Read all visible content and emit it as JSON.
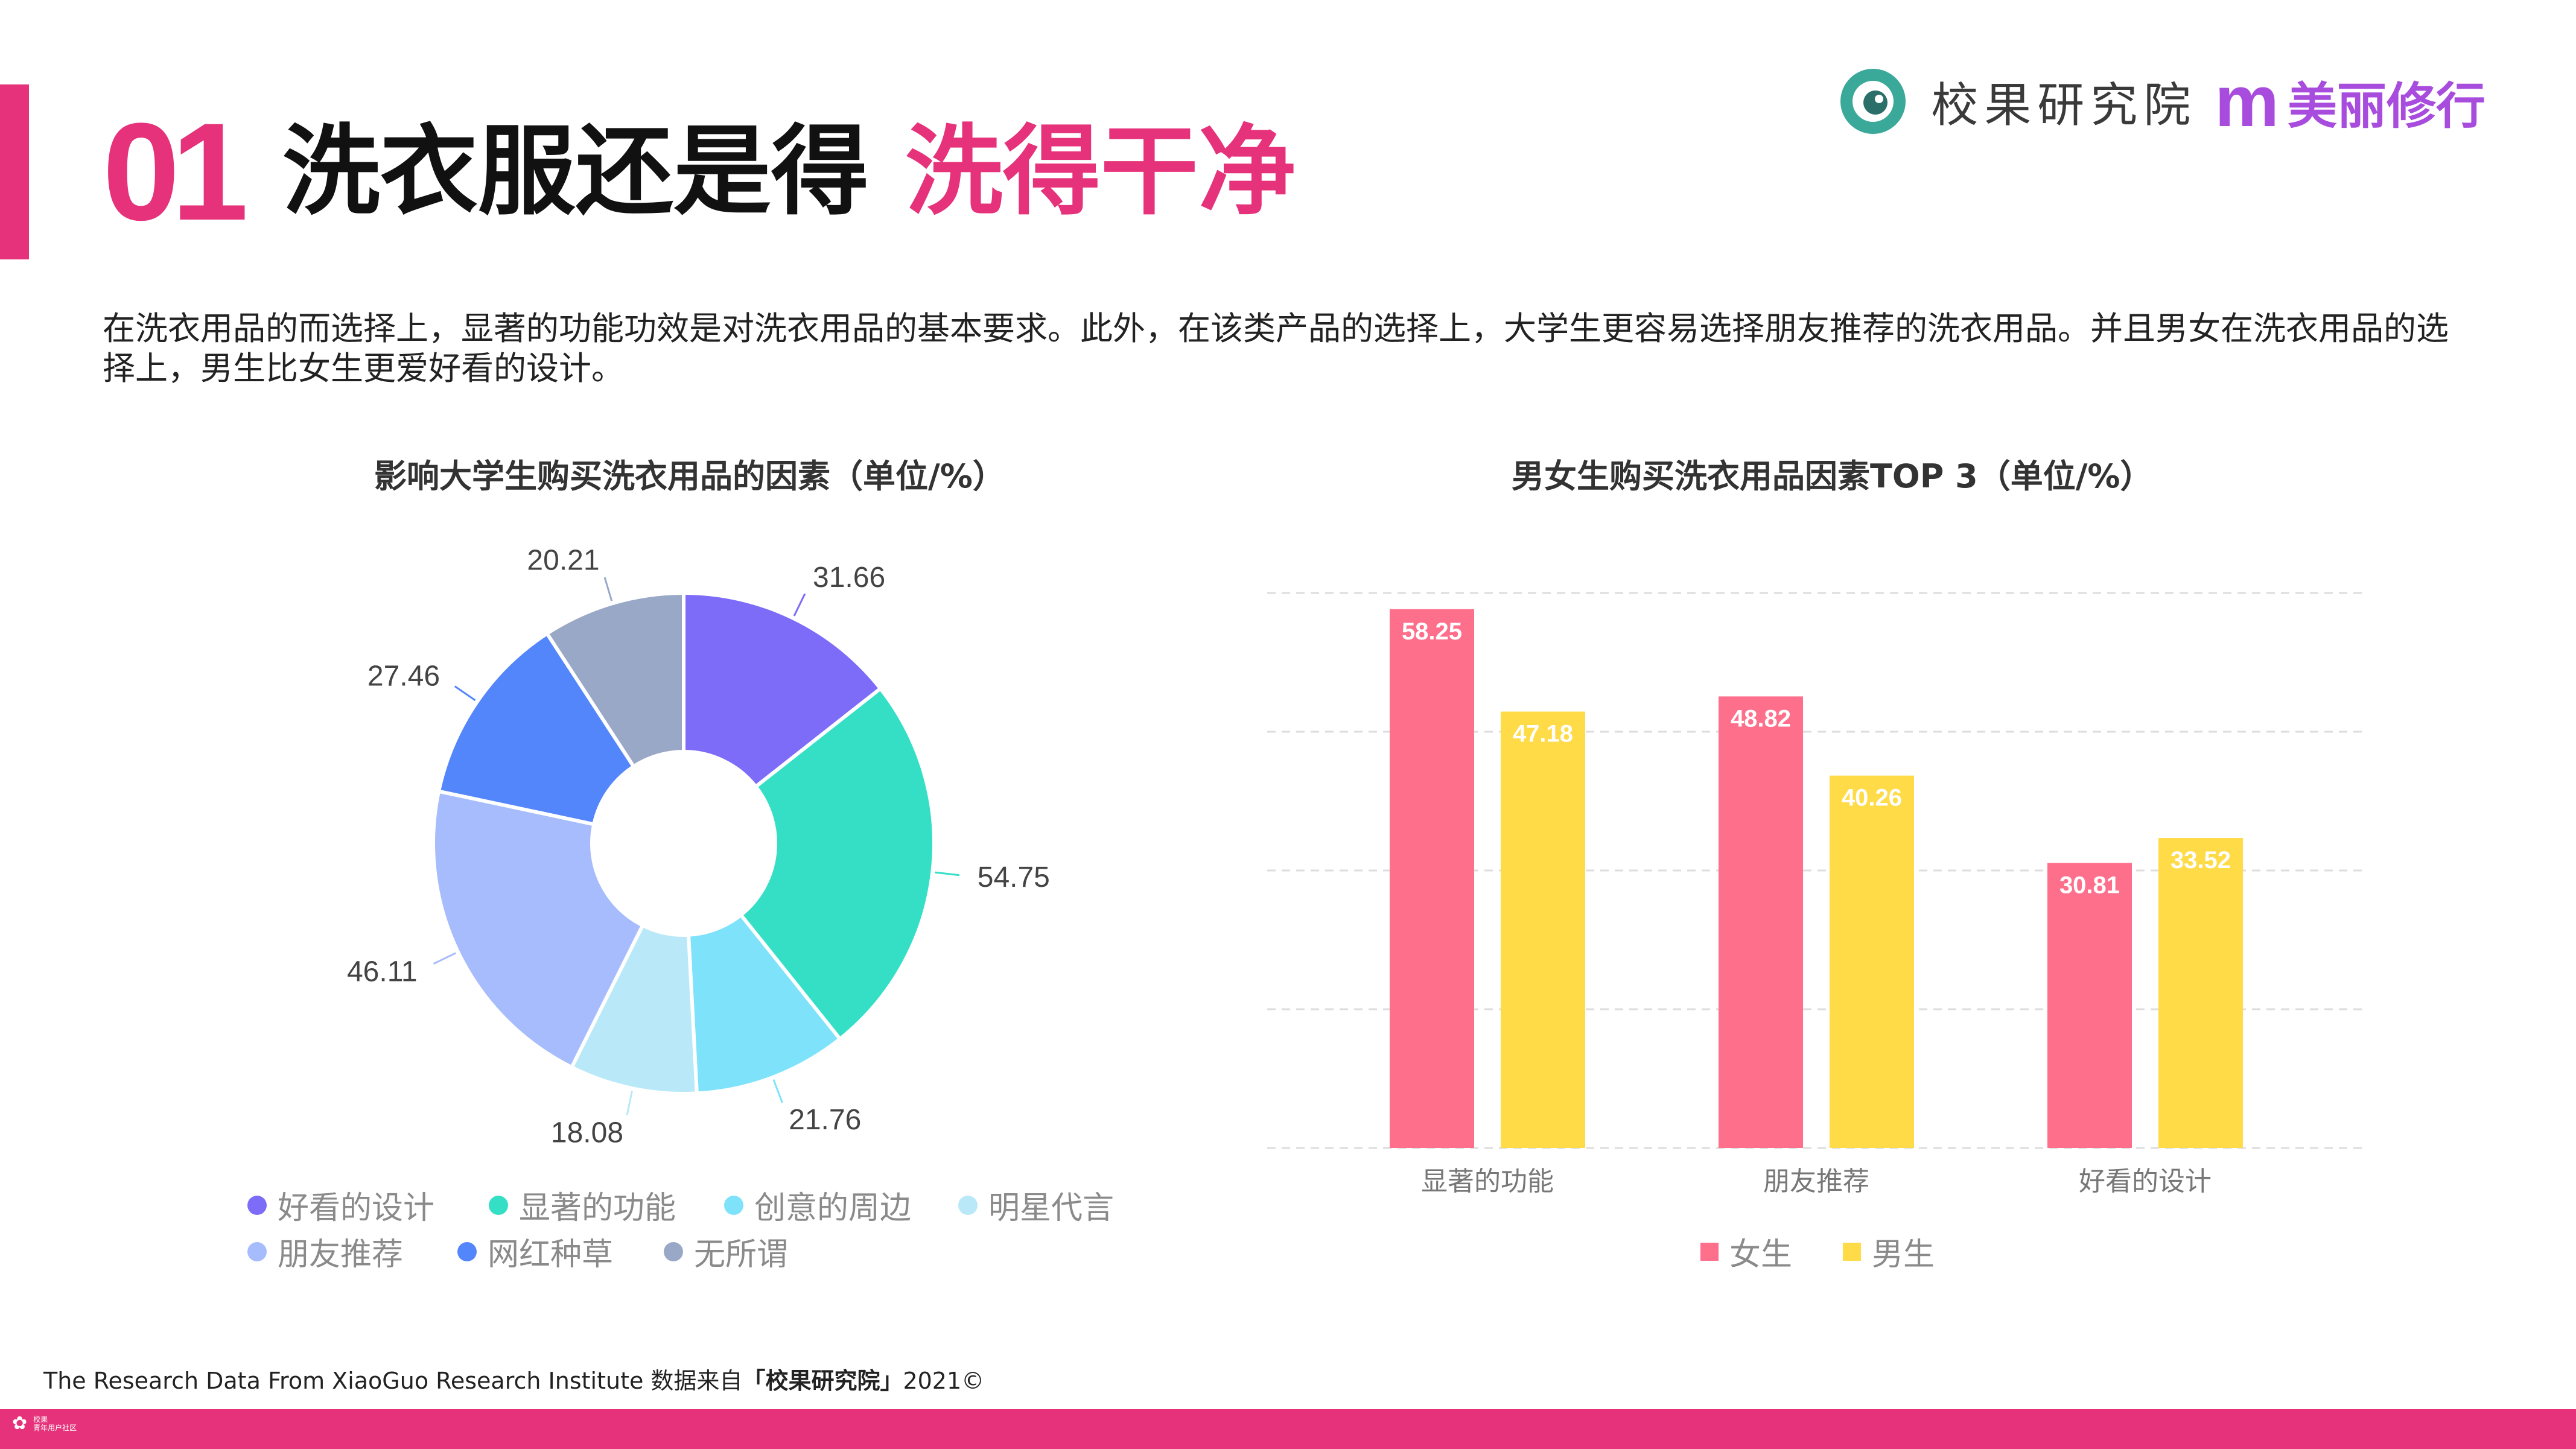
{
  "header": {
    "number": "01",
    "title_black": "洗衣服还是得",
    "title_pink": "洗得干净"
  },
  "brand": {
    "name": "校果研究院",
    "m_letter": "m",
    "sub_name": "美丽修行",
    "logo_color": "#3aa99a",
    "accent_color": "#a84cde"
  },
  "intro": "在洗衣用品的而选择上，显著的功能功效是对洗衣用品的基本要求。此外，在该类产品的选择上，大学生更容易选择朋友推荐的洗衣用品。并且男女在洗衣用品的选择上，男生比女生更爱好看的设计。",
  "chart_data": [
    {
      "type": "pie",
      "donut": true,
      "title": "影响大学生购买洗衣用品的因素（单位/%）",
      "categories": [
        "好看的设计",
        "显著的功能",
        "创意的周边",
        "明星代言",
        "朋友推荐",
        "网红种草",
        "无所谓"
      ],
      "values": [
        31.66,
        54.75,
        21.76,
        18.08,
        46.11,
        27.46,
        20.21
      ],
      "colors": [
        "#7c6cf8",
        "#34dfc6",
        "#7ee3fa",
        "#b9e9f8",
        "#a7bcfd",
        "#5486fb",
        "#9aa8c8"
      ],
      "legend_position": "bottom"
    },
    {
      "type": "bar",
      "title": "男女生购买洗衣用品因素TOP 3（单位/%）",
      "categories": [
        "显著的功能",
        "朋友推荐",
        "好看的设计"
      ],
      "series": [
        {
          "name": "女生",
          "values": [
            58.25,
            48.82,
            30.81
          ],
          "color": "#fe6f8c"
        },
        {
          "name": "男生",
          "values": [
            47.18,
            40.26,
            33.52
          ],
          "color": "#fedb47"
        }
      ],
      "ylim": [
        0,
        60
      ],
      "grid": true,
      "legend_position": "bottom"
    }
  ],
  "footer": {
    "text_prefix": "The Research Data From XiaoGuo Research Institute 数据来自",
    "text_bold": "「校果研究院」",
    "text_suffix": "2021©",
    "mini_line1": "校果",
    "mini_line2": "青年用户社区"
  }
}
